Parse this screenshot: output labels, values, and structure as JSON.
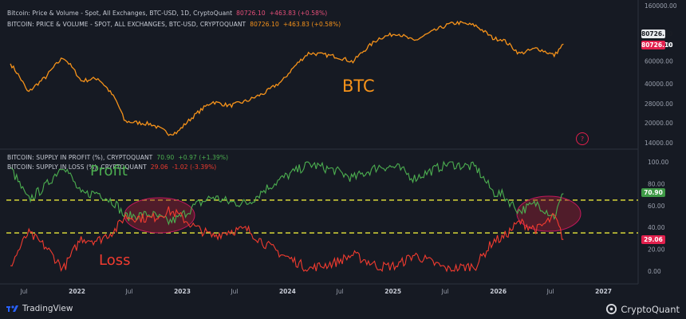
{
  "legend": {
    "btc_spot": {
      "label": "Bitcoin: Price & Volume - Spot, All Exchanges, BTC-USD, 1D, CryptoQuant",
      "value": "80726.10",
      "change": "+463.83 (+0.58%)"
    },
    "btc_line": {
      "label": "BITCOIN: PRICE & VOLUME - SPOT, ALL EXCHANGES, BTC-USD, CRYPTOQUANT",
      "value": "80726.10",
      "change": "+463.83 (+0.58%)"
    },
    "profit": {
      "label": "BITCOIN: SUPPLY IN PROFIT (%), CRYPTOQUANT",
      "value": "70.90",
      "change": "+0.97 (+1.39%)"
    },
    "loss": {
      "label": "BITCOIN: SUPPLY IN LOSS (%), CRYPTOQUANT",
      "value": "29.06",
      "change": "-1.02 (-3.39%)"
    }
  },
  "annotations": {
    "btc": "BTC",
    "profit": "Profit",
    "loss": "Loss",
    "marker": "?"
  },
  "badges": {
    "price_white": "80726.10",
    "price_red": "80726.10",
    "profit": "70.90",
    "loss": "29.06"
  },
  "footer": {
    "left": "TradingView",
    "right": "CryptoQuant"
  },
  "colors": {
    "background": "#161a23",
    "btc": "#f7931a",
    "profit": "#4caf50",
    "loss": "#f23b2f",
    "threshold": "#e8e83a",
    "badge_red": "#e2204d"
  },
  "chart_data": [
    {
      "type": "line",
      "y_scale": "log",
      "y_ticks": [
        "160000.00",
        "80000.00",
        "60000.00",
        "40000.00",
        "28000.00",
        "20000.00",
        "14000.00"
      ],
      "x_ticks": [
        "Jul",
        "2022",
        "Jul",
        "2023",
        "Jul",
        "2024",
        "Jul",
        "2025",
        "Jul",
        "2026",
        "Jul",
        "2027"
      ],
      "series": [
        {
          "name": "BTC",
          "x": [
            "2021-05",
            "2021-07",
            "2021-09",
            "2021-11",
            "2022-01",
            "2022-03",
            "2022-05",
            "2022-06",
            "2022-09",
            "2022-11",
            "2022-12",
            "2023-02",
            "2023-04",
            "2023-06",
            "2023-08",
            "2023-10",
            "2023-12",
            "2024-03",
            "2024-06",
            "2024-08",
            "2024-11",
            "2025-01",
            "2025-03",
            "2025-05",
            "2025-07",
            "2025-08",
            "2025-10",
            "2025-12",
            "2026-01",
            "2026-03",
            "2026-05",
            "2026-07",
            "2026-08"
          ],
          "values": [
            57000,
            34000,
            45000,
            64000,
            42000,
            44000,
            30000,
            20500,
            19500,
            16500,
            16800,
            23000,
            29000,
            27000,
            29500,
            34000,
            42000,
            69000,
            65000,
            59000,
            90000,
            98000,
            85000,
            100000,
            115000,
            118000,
            112000,
            89000,
            88000,
            68000,
            75000,
            66000,
            80700
          ]
        }
      ]
    },
    {
      "type": "line",
      "y_ticks": [
        "100.00",
        "80.00",
        "60.00",
        "40.00",
        "20.00",
        "0.00"
      ],
      "x_ticks": [
        "Jul",
        "2022",
        "Jul",
        "2023",
        "Jul",
        "2024",
        "Jul",
        "2025",
        "Jul",
        "2026",
        "Jul",
        "2027"
      ],
      "thresholds": [
        65,
        35
      ],
      "series": [
        {
          "name": "Profit",
          "x": [
            "2021-05",
            "2021-07",
            "2021-09",
            "2021-11",
            "2022-01",
            "2022-03",
            "2022-05",
            "2022-06",
            "2022-09",
            "2022-11",
            "2022-12",
            "2023-02",
            "2023-04",
            "2023-06",
            "2023-08",
            "2023-10",
            "2023-12",
            "2024-03",
            "2024-06",
            "2024-08",
            "2024-11",
            "2025-01",
            "2025-03",
            "2025-05",
            "2025-07",
            "2025-08",
            "2025-10",
            "2025-12",
            "2026-01",
            "2026-03",
            "2026-05",
            "2026-07",
            "2026-08"
          ],
          "values": [
            95,
            65,
            78,
            98,
            70,
            72,
            62,
            50,
            52,
            45,
            48,
            60,
            68,
            63,
            62,
            75,
            85,
            98,
            92,
            85,
            96,
            95,
            85,
            92,
            99,
            97,
            95,
            72,
            70,
            55,
            62,
            50,
            70.9
          ]
        },
        {
          "name": "Loss",
          "x": [
            "2021-05",
            "2021-07",
            "2021-09",
            "2021-11",
            "2022-01",
            "2022-03",
            "2022-05",
            "2022-06",
            "2022-09",
            "2022-11",
            "2022-12",
            "2023-02",
            "2023-04",
            "2023-06",
            "2023-08",
            "2023-10",
            "2023-12",
            "2024-03",
            "2024-06",
            "2024-08",
            "2024-11",
            "2025-01",
            "2025-03",
            "2025-05",
            "2025-07",
            "2025-08",
            "2025-10",
            "2025-12",
            "2026-01",
            "2026-03",
            "2026-05",
            "2026-07",
            "2026-08"
          ],
          "values": [
            5,
            35,
            22,
            2,
            30,
            28,
            38,
            50,
            48,
            55,
            52,
            40,
            32,
            37,
            38,
            25,
            15,
            2,
            8,
            15,
            4,
            5,
            15,
            8,
            1,
            3,
            5,
            28,
            30,
            45,
            38,
            50,
            29.06
          ]
        }
      ]
    }
  ]
}
